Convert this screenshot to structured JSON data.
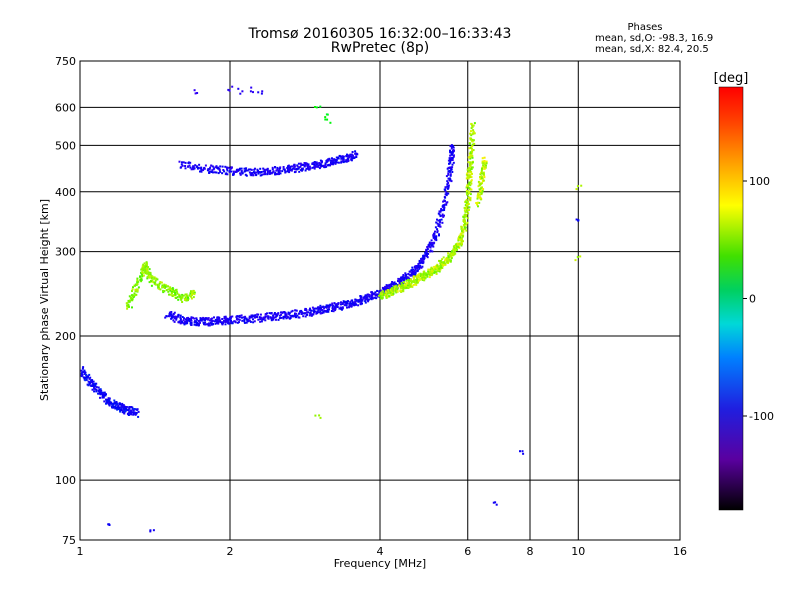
{
  "header": {
    "title": "Tromsø 20160305 16:32:00–16:33:43",
    "subtitle": "RwPretec (8p)"
  },
  "phase_info": {
    "heading": "Phases",
    "line_o": "mean, sd,O: -98.3, 16.9",
    "line_x": "mean, sd,X: 82.4, 20.5"
  },
  "colorbar": {
    "label": "[deg]",
    "range": [
      -180,
      180
    ],
    "ticks": [
      100,
      0,
      -100
    ]
  },
  "chart_data": {
    "type": "scatter",
    "xlabel": "Frequency [MHz]",
    "ylabel": "Stationary phase Virtual Height [km]",
    "x_scale": "log",
    "y_scale": "log",
    "xlim": [
      1,
      16
    ],
    "ylim": [
      75,
      750
    ],
    "x_ticks": [
      1,
      2,
      4,
      6,
      8,
      10,
      16
    ],
    "y_ticks": [
      75,
      100,
      200,
      300,
      400,
      500,
      600,
      750
    ],
    "grid": true,
    "traces": [
      {
        "phase": -110,
        "points": [
          [
            1.5,
            222
          ],
          [
            1.6,
            216
          ],
          [
            1.7,
            214
          ],
          [
            1.8,
            214
          ],
          [
            1.9,
            215
          ],
          [
            2.0,
            216
          ],
          [
            2.2,
            217
          ],
          [
            2.4,
            219
          ],
          [
            2.6,
            221
          ],
          [
            2.8,
            223
          ],
          [
            3.0,
            226
          ],
          [
            3.2,
            229
          ],
          [
            3.4,
            232
          ],
          [
            3.6,
            236
          ],
          [
            3.8,
            241
          ],
          [
            4.0,
            246
          ],
          [
            4.2,
            252
          ],
          [
            4.4,
            259
          ],
          [
            4.6,
            268
          ],
          [
            4.8,
            282
          ],
          [
            5.0,
            300
          ],
          [
            5.2,
            330
          ],
          [
            5.4,
            380
          ],
          [
            5.55,
            450
          ],
          [
            5.6,
            500
          ]
        ]
      },
      {
        "phase": 90,
        "points": [
          [
            4.0,
            242
          ],
          [
            4.2,
            246
          ],
          [
            4.4,
            252
          ],
          [
            4.6,
            258
          ],
          [
            4.8,
            264
          ],
          [
            5.0,
            270
          ],
          [
            5.2,
            276
          ],
          [
            5.4,
            286
          ],
          [
            5.6,
            296
          ],
          [
            5.8,
            315
          ],
          [
            5.9,
            340
          ],
          [
            6.0,
            380
          ],
          [
            6.05,
            430
          ],
          [
            6.1,
            480
          ],
          [
            6.15,
            560
          ]
        ]
      },
      {
        "phase": -110,
        "points": [
          [
            1.6,
            455
          ],
          [
            1.8,
            447
          ],
          [
            2.0,
            442
          ],
          [
            2.2,
            440
          ],
          [
            2.4,
            442
          ],
          [
            2.6,
            445
          ],
          [
            2.8,
            450
          ],
          [
            3.0,
            455
          ],
          [
            3.2,
            462
          ],
          [
            3.4,
            470
          ],
          [
            3.6,
            478
          ]
        ]
      },
      {
        "phase": -100,
        "points": [
          [
            1.0,
            170
          ],
          [
            1.05,
            160
          ],
          [
            1.1,
            152
          ],
          [
            1.15,
            145
          ],
          [
            1.2,
            142
          ],
          [
            1.25,
            140
          ],
          [
            1.3,
            138
          ]
        ]
      },
      {
        "phase": 80,
        "points": [
          [
            1.25,
            230
          ],
          [
            1.3,
            255
          ],
          [
            1.35,
            280
          ],
          [
            1.4,
            260
          ],
          [
            1.5,
            250
          ],
          [
            1.6,
            240
          ],
          [
            1.7,
            245
          ]
        ]
      },
      {
        "phase": 95,
        "points": [
          [
            6.3,
            380
          ],
          [
            6.4,
            420
          ],
          [
            6.5,
            470
          ]
        ]
      }
    ],
    "scatter": [
      {
        "phase": -120,
        "points": [
          [
            1.7,
            650
          ],
          [
            2.0,
            655
          ],
          [
            2.1,
            650
          ],
          [
            2.2,
            652
          ],
          [
            2.3,
            648
          ]
        ]
      },
      {
        "phase": 40,
        "points": [
          [
            3.0,
            600
          ],
          [
            3.1,
            580
          ],
          [
            3.15,
            560
          ]
        ]
      },
      {
        "phase": -100,
        "points": [
          [
            1.15,
            80
          ],
          [
            1.4,
            79
          ],
          [
            6.8,
            90
          ],
          [
            7.7,
            115
          ],
          [
            10.0,
            350
          ]
        ]
      },
      {
        "phase": 90,
        "points": [
          [
            10.0,
            410
          ],
          [
            10.0,
            290
          ],
          [
            3.0,
            135
          ]
        ]
      }
    ]
  }
}
